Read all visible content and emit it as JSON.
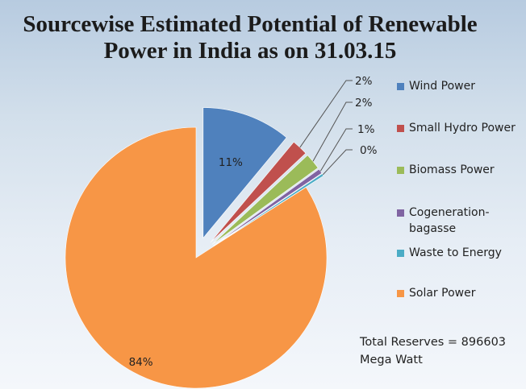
{
  "chart_data": {
    "type": "pie",
    "title": [
      "Sourcewise Estimated Potential of Renewable",
      "Power in India as on 31.03.15"
    ],
    "legend_position": "right",
    "exploded": true,
    "slices": [
      {
        "name": "Wind Power",
        "value": 11,
        "label": "11%",
        "color": "#4f81bd"
      },
      {
        "name": "Small Hydro Power",
        "value": 2,
        "label": "2%",
        "color": "#c0504d"
      },
      {
        "name": "Biomass Power",
        "value": 2,
        "label": "2%",
        "color": "#9bbb59"
      },
      {
        "name": "Cogeneration-bagasse",
        "value": 0.6,
        "label": "1%",
        "color": "#8064a2"
      },
      {
        "name": "Waste to Energy",
        "value": 0.3,
        "label": "0%",
        "color": "#4bacc6"
      },
      {
        "name": "Solar Power",
        "value": 84,
        "label": "84%",
        "color": "#f79646"
      }
    ],
    "legend": [
      {
        "lines": [
          "Wind Power"
        ]
      },
      {
        "lines": [
          "Small Hydro Power"
        ]
      },
      {
        "lines": [
          "Biomass Power"
        ]
      },
      {
        "lines": [
          "Cogeneration-",
          "bagasse"
        ]
      },
      {
        "lines": [
          "Waste to Energy"
        ]
      },
      {
        "lines": [
          "Solar Power"
        ]
      }
    ]
  },
  "note": {
    "line1": "Total Reserves = 896603",
    "line2": "Mega Watt"
  }
}
